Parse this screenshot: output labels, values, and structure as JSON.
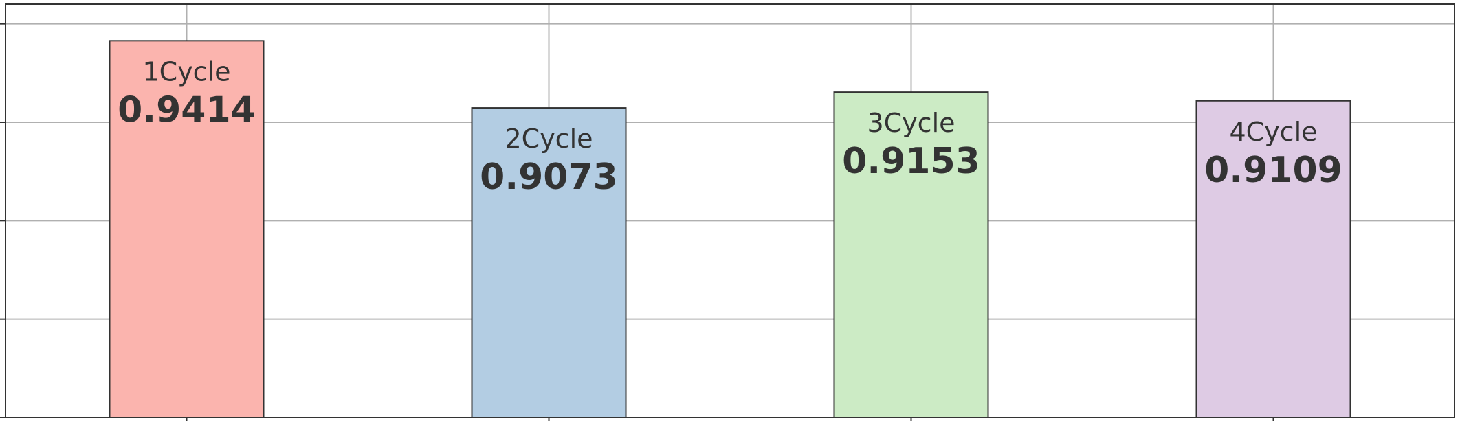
{
  "chart_data": {
    "type": "bar",
    "categories": [
      "1Cycle",
      "2Cycle",
      "3Cycle",
      "4Cycle"
    ],
    "values": [
      0.9414,
      0.9073,
      0.9153,
      0.9109
    ],
    "value_labels": [
      "0.9414",
      "0.9073",
      "0.9153",
      "0.9109"
    ],
    "colors": [
      "#fbb4ae",
      "#b3cde3",
      "#ccebc5",
      "#decbe4"
    ],
    "edge_color": "#333333",
    "ylim": [
      0.75,
      0.96
    ],
    "yticks": [
      0.75,
      0.8,
      0.85,
      0.9,
      0.95
    ],
    "grid": true,
    "title": "",
    "xlabel": "",
    "ylabel": ""
  }
}
